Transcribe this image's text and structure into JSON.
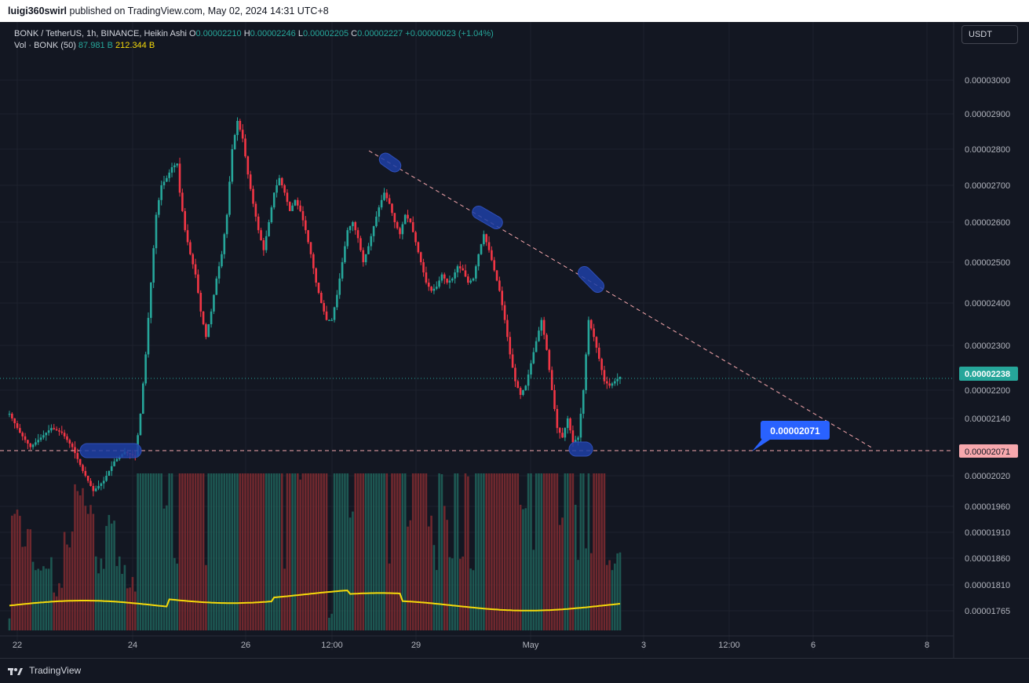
{
  "header": {
    "publisher": "luigi360swirl",
    "published_text": "published on TradingView.com, May 02, 2024 14:31 UTC+8"
  },
  "legend": {
    "symbol_line": "BONK / TetherUS, 1h, BINANCE, Heikin Ashi",
    "o_label": "O",
    "o_value": "0.00002210",
    "h_label": "H",
    "h_value": "0.00002246",
    "l_label": "L",
    "l_value": "0.00002205",
    "c_label": "C",
    "c_value": "0.00002227",
    "change": "+0.00000023 (+1.04%)",
    "vol_label": "Vol · BONK (50)",
    "vol_value": "87.981 B",
    "vol_ma_value": "212.344 B"
  },
  "currency_button": "USDT",
  "footer": {
    "brand": "TradingView"
  },
  "colors": {
    "up": "#26a69a",
    "down": "#f23645",
    "background": "#131722",
    "grid": "#1e222d",
    "vol_ma": "#f5d90a",
    "annotation": "#1f3fa6",
    "support_line": "#f7a8ad",
    "label_blue": "#2962ff",
    "label_pink": "#f7a8ad"
  },
  "chart_data": {
    "type": "candlestick",
    "style": "heikin-ashi",
    "x_ticks": [
      "22",
      "24",
      "26",
      "12:00",
      "29",
      "May",
      "3",
      "12:00",
      "6",
      "8"
    ],
    "y_ticks": [
      "0.00003000",
      "0.00002900",
      "0.00002800",
      "0.00002700",
      "0.00002600",
      "0.00002500",
      "0.00002400",
      "0.00002300",
      "0.00002200",
      "0.00002140",
      "0.00002020",
      "0.00001960",
      "0.00001910",
      "0.00001860",
      "0.00001810",
      "0.00001765"
    ],
    "y_range": [
      1.76e-05,
      3.07e-05
    ],
    "last_price_label": "0.00002238",
    "support_level_label": "0.00002071",
    "callout_label": "0.00002071",
    "price_path": [
      [
        0,
        2.15e-05
      ],
      [
        4,
        2.11e-05
      ],
      [
        8,
        2.08e-05
      ],
      [
        12,
        2.1e-05
      ],
      [
        16,
        2.12e-05
      ],
      [
        20,
        2.11e-05
      ],
      [
        24,
        2.08e-05
      ],
      [
        28,
        2.03e-05
      ],
      [
        32,
        1.99e-05
      ],
      [
        36,
        2.01e-05
      ],
      [
        40,
        2.05e-05
      ],
      [
        44,
        2.07e-05
      ],
      [
        48,
        2.06e-05
      ],
      [
        50,
        2.15e-05
      ],
      [
        52,
        2.28e-05
      ],
      [
        54,
        2.45e-05
      ],
      [
        56,
        2.62e-05
      ],
      [
        58,
        2.7e-05
      ],
      [
        60,
        2.72e-05
      ],
      [
        62,
        2.75e-05
      ],
      [
        64,
        2.76e-05
      ],
      [
        65,
        2.68e-05
      ],
      [
        67,
        2.58e-05
      ],
      [
        69,
        2.52e-05
      ],
      [
        71,
        2.47e-05
      ],
      [
        73,
        2.38e-05
      ],
      [
        75,
        2.32e-05
      ],
      [
        77,
        2.38e-05
      ],
      [
        79,
        2.46e-05
      ],
      [
        81,
        2.52e-05
      ],
      [
        83,
        2.62e-05
      ],
      [
        85,
        2.8e-05
      ],
      [
        87,
        2.88e-05
      ],
      [
        89,
        2.83e-05
      ],
      [
        91,
        2.73e-05
      ],
      [
        93,
        2.65e-05
      ],
      [
        95,
        2.58e-05
      ],
      [
        97,
        2.53e-05
      ],
      [
        99,
        2.6e-05
      ],
      [
        101,
        2.68e-05
      ],
      [
        103,
        2.72e-05
      ],
      [
        105,
        2.68e-05
      ],
      [
        107,
        2.63e-05
      ],
      [
        109,
        2.66e-05
      ],
      [
        111,
        2.63e-05
      ],
      [
        113,
        2.58e-05
      ],
      [
        115,
        2.52e-05
      ],
      [
        117,
        2.45e-05
      ],
      [
        119,
        2.4e-05
      ],
      [
        121,
        2.36e-05
      ],
      [
        123,
        2.36e-05
      ],
      [
        125,
        2.42e-05
      ],
      [
        127,
        2.5e-05
      ],
      [
        129,
        2.58e-05
      ],
      [
        131,
        2.6e-05
      ],
      [
        133,
        2.56e-05
      ],
      [
        135,
        2.5e-05
      ],
      [
        137,
        2.54e-05
      ],
      [
        139,
        2.59e-05
      ],
      [
        141,
        2.64e-05
      ],
      [
        143,
        2.68e-05
      ],
      [
        145,
        2.65e-05
      ],
      [
        147,
        2.6e-05
      ],
      [
        149,
        2.57e-05
      ],
      [
        151,
        2.62e-05
      ],
      [
        153,
        2.6e-05
      ],
      [
        155,
        2.55e-05
      ],
      [
        157,
        2.5e-05
      ],
      [
        159,
        2.45e-05
      ],
      [
        161,
        2.43e-05
      ],
      [
        163,
        2.44e-05
      ],
      [
        165,
        2.47e-05
      ],
      [
        167,
        2.45e-05
      ],
      [
        169,
        2.46e-05
      ],
      [
        171,
        2.49e-05
      ],
      [
        173,
        2.48e-05
      ],
      [
        175,
        2.45e-05
      ],
      [
        177,
        2.46e-05
      ],
      [
        179,
        2.52e-05
      ],
      [
        181,
        2.57e-05
      ],
      [
        183,
        2.53e-05
      ],
      [
        185,
        2.48e-05
      ],
      [
        187,
        2.43e-05
      ],
      [
        189,
        2.36e-05
      ],
      [
        191,
        2.28e-05
      ],
      [
        193,
        2.22e-05
      ],
      [
        195,
        2.19e-05
      ],
      [
        197,
        2.21e-05
      ],
      [
        199,
        2.26e-05
      ],
      [
        201,
        2.31e-05
      ],
      [
        203,
        2.36e-05
      ],
      [
        205,
        2.29e-05
      ],
      [
        207,
        2.2e-05
      ],
      [
        209,
        2.12e-05
      ],
      [
        211,
        2.1e-05
      ],
      [
        213,
        2.14e-05
      ],
      [
        215,
        2.09e-05
      ],
      [
        217,
        2.1e-05
      ],
      [
        219,
        2.2e-05
      ],
      [
        221,
        2.36e-05
      ],
      [
        223,
        2.32e-05
      ],
      [
        225,
        2.27e-05
      ],
      [
        227,
        2.22e-05
      ],
      [
        229,
        2.21e-05
      ],
      [
        231,
        2.22e-05
      ],
      [
        233,
        2.23e-05
      ]
    ],
    "volume_ma_label": "Vol MA (50)"
  }
}
